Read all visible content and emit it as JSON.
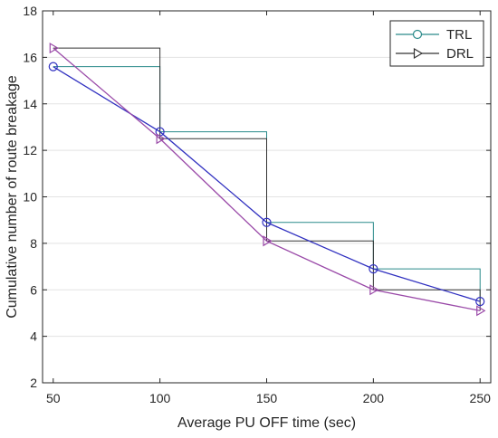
{
  "chart_data": {
    "type": "line",
    "xlabel": "Average PU OFF time (sec)",
    "ylabel": "Cumulative number of route breakage",
    "x": [
      50,
      100,
      150,
      200,
      250
    ],
    "xlim": [
      45,
      255
    ],
    "ylim": [
      2,
      18
    ],
    "xticks": [
      "50",
      "100",
      "150",
      "200",
      "250"
    ],
    "yticks": [
      "2",
      "4",
      "6",
      "8",
      "10",
      "12",
      "14",
      "16",
      "18"
    ],
    "grid": "horizontal",
    "legend_position": "top-right",
    "series": [
      {
        "name": "TRL",
        "marker": "circle",
        "line_color": "#3030c0",
        "step_color": "#2a8a8a",
        "values": [
          15.6,
          12.8,
          8.9,
          6.9,
          5.5
        ]
      },
      {
        "name": "DRL",
        "marker": "triangle-right",
        "line_color": "#9a4aa8",
        "step_color": "#333333",
        "values": [
          16.4,
          12.5,
          8.1,
          6.0,
          5.1
        ]
      }
    ]
  }
}
